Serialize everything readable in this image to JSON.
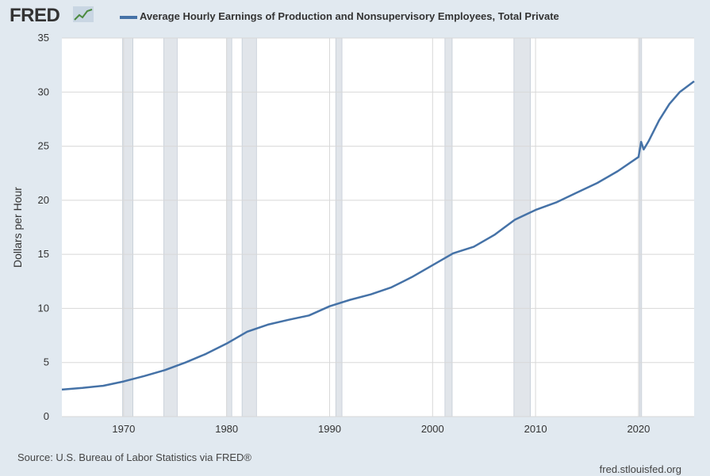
{
  "header": {
    "logo_text": "FRED",
    "legend_label": "Average Hourly Earnings of Production and Nonsupervisory Employees, Total Private"
  },
  "footer": {
    "source": "Source: U.S. Bureau of Labor Statistics via FRED®",
    "url": "fred.stlouisfed.org"
  },
  "colors": {
    "series": "#4572a7",
    "recession": "#e1e5ea",
    "background": "#e1e9f0"
  },
  "chart_data": {
    "type": "line",
    "title": "",
    "xlabel": "",
    "ylabel": "Dollars per Hour",
    "xlim": [
      1964.0,
      2025.4
    ],
    "ylim": [
      0,
      35
    ],
    "xticks": [
      1970,
      1980,
      1990,
      2000,
      2010,
      2020
    ],
    "yticks": [
      0,
      5,
      10,
      15,
      20,
      25,
      30,
      35
    ],
    "grid": true,
    "legend_position": "top",
    "recessions": [
      [
        1969.9,
        1970.9
      ],
      [
        1973.9,
        1975.2
      ],
      [
        1980.0,
        1980.5
      ],
      [
        1981.5,
        1982.9
      ],
      [
        1990.6,
        1991.2
      ],
      [
        2001.2,
        2001.9
      ],
      [
        2007.9,
        2009.5
      ],
      [
        2020.1,
        2020.3
      ]
    ],
    "series": [
      {
        "name": "Average Hourly Earnings of Production and Nonsupervisory Employees, Total Private",
        "x": [
          1964,
          1966,
          1968,
          1970,
          1972,
          1974,
          1976,
          1978,
          1980,
          1982,
          1984,
          1986,
          1988,
          1990,
          1992,
          1994,
          1996,
          1998,
          2000,
          2002,
          2004,
          2006,
          2008,
          2010,
          2012,
          2014,
          2016,
          2018,
          2020.0,
          2020.25,
          2020.5,
          2021,
          2022,
          2023,
          2024,
          2025.4
        ],
        "values": [
          2.5,
          2.65,
          2.85,
          3.25,
          3.75,
          4.3,
          5.0,
          5.8,
          6.75,
          7.85,
          8.5,
          8.95,
          9.35,
          10.2,
          10.8,
          11.3,
          11.95,
          12.9,
          14.0,
          15.1,
          15.7,
          16.8,
          18.2,
          19.1,
          19.8,
          20.7,
          21.6,
          22.7,
          24.0,
          25.4,
          24.7,
          25.5,
          27.4,
          28.9,
          30.0,
          31.0
        ]
      }
    ]
  }
}
